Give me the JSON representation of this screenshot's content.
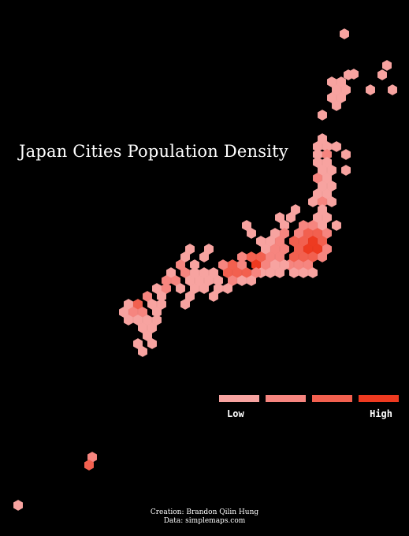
{
  "title": "Japan Cities Population Density",
  "legend": {
    "low_label": "Low",
    "high_label": "High",
    "colors": [
      "#f7a3a0",
      "#f6857f",
      "#f2604f",
      "#ee3a20"
    ]
  },
  "credits": {
    "creation": "Creation: Brandon Qilin Hung",
    "data": "Data: simplemaps.com"
  },
  "map": {
    "background": "#000000",
    "levels": [
      "low",
      "medium-low",
      "medium-high",
      "high"
    ]
  }
}
